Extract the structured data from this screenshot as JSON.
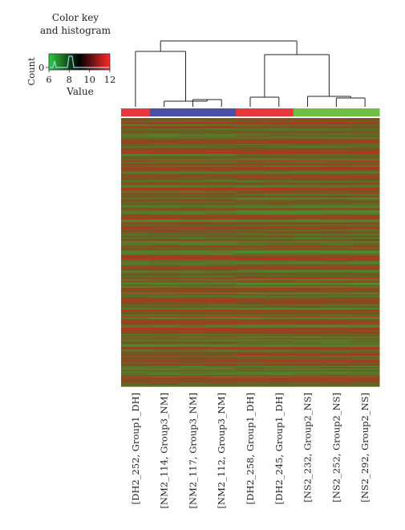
{
  "color_key": {
    "title_line1": "Color key",
    "title_line2": "and histogram",
    "y_axis_label": "Count",
    "y_tick": "0",
    "x_axis_label": "Value",
    "x_ticks": [
      "6",
      "8",
      "10",
      "12"
    ],
    "x_range": [
      6,
      12
    ],
    "gradient_colors": [
      "#2ecc40",
      "#000000",
      "#ff2a2a"
    ]
  },
  "chart_data": {
    "type": "heatmap",
    "columns": [
      "[DH2_252, Group1_DH]",
      "[NM2_114, Group3_NM]",
      "[NM2_117, Group3_NM]",
      "[NM2_112, Group3_NM]",
      "[DH2_258, Group1_DH]",
      "[DH2_245, Group1_DH]",
      "[NS2_232, Group2_NS]",
      "[NS2_252, Group2_NS]",
      "[NS2_292, Group2_NS]"
    ],
    "column_groups": [
      "Group1_DH",
      "Group3_NM",
      "Group3_NM",
      "Group3_NM",
      "Group1_DH",
      "Group1_DH",
      "Group2_NS",
      "Group2_NS",
      "Group2_NS"
    ],
    "group_colors": {
      "Group1_DH": "#e8383d",
      "Group3_NM": "#4a4fa8",
      "Group2_NS": "#6fbe44"
    },
    "value_range": [
      6,
      12
    ],
    "low_color": "#2ecc40",
    "mid_color": "#000000",
    "high_color": "#ff2a2a",
    "dendrogram": "hierarchical clustering of 9 columns: {DH2_252, {NM2_114, {NM2_117, NM2_112}}} and {{DH2_258, DH2_245}, {NS2_232, {NS2_252, NS2_292}}}"
  }
}
